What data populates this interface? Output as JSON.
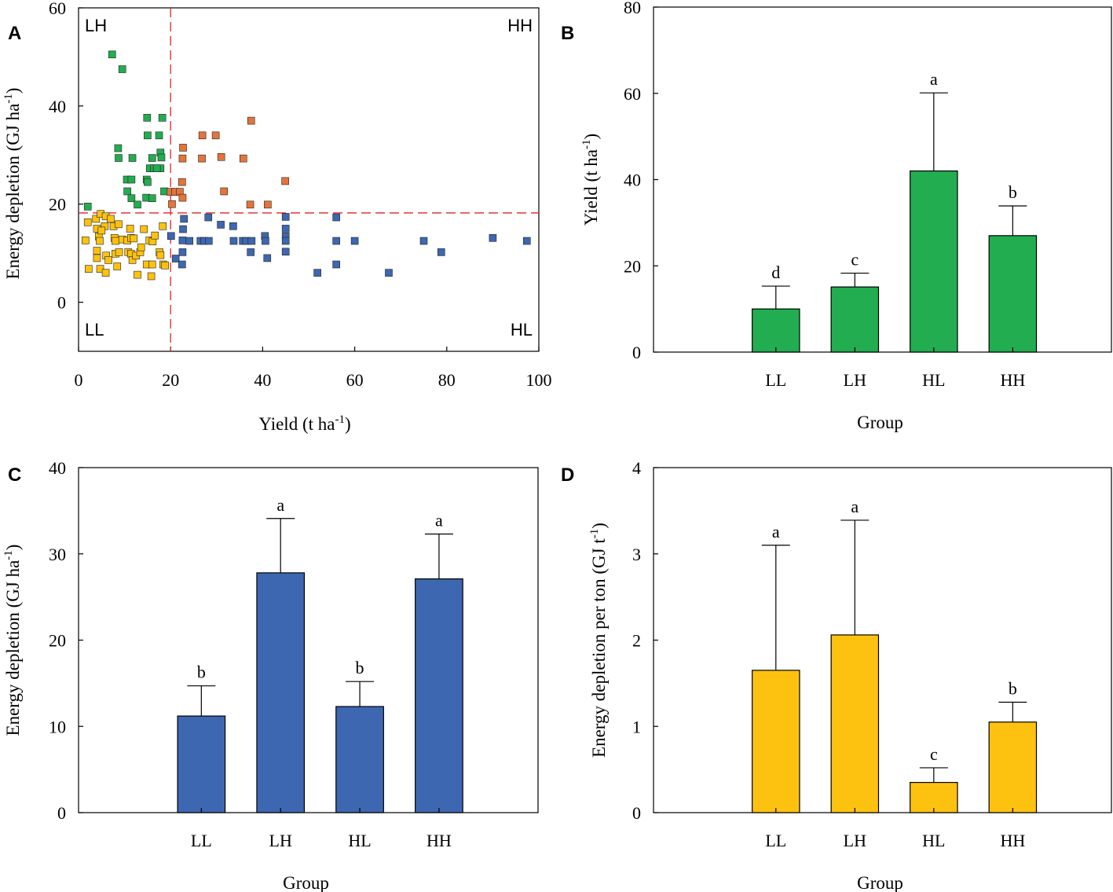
{
  "colors": {
    "green": "#22ad50",
    "orange": "#e5743a",
    "blue": "#3d67b0",
    "yellow": "#fdc20f",
    "threshold": "#e0232a"
  },
  "chart_data": [
    {
      "id": "A",
      "panel_label": "A",
      "type": "scatter",
      "xlabel": "Yield (t ha",
      "xlabel_sup": "-1",
      "xlabel_close": ")",
      "ylabel": "Energy depletion (GJ ha",
      "ylabel_sup": "-1",
      "ylabel_close": ")",
      "xlim": [
        0,
        100
      ],
      "ylim": [
        -10,
        60
      ],
      "xticks": [
        0,
        20,
        40,
        60,
        80,
        100
      ],
      "yticks": [
        0,
        20,
        40,
        60
      ],
      "thresholds": {
        "x": 20,
        "y": 18.2
      },
      "quadrant_labels": {
        "top_left": "LH",
        "top_right": "HH",
        "bottom_left": "LL",
        "bottom_right": "HL"
      },
      "series": [
        {
          "name": "LH",
          "color_key": "green",
          "points": [
            [
              2,
              19.5
            ],
            [
              7.3,
              50.5
            ],
            [
              9.5,
              47.5
            ],
            [
              8.6,
              31.4
            ],
            [
              8.7,
              29.4
            ],
            [
              14.9,
              37.6
            ],
            [
              18.2,
              37.6
            ],
            [
              15,
              34
            ],
            [
              17.5,
              34
            ],
            [
              17.8,
              30.5
            ],
            [
              18,
              29.5
            ],
            [
              16,
              29.4
            ],
            [
              11.7,
              29.4
            ],
            [
              17.8,
              27.3
            ],
            [
              15.5,
              27.3
            ],
            [
              16.4,
              27.3
            ],
            [
              17,
              27.3
            ],
            [
              10.5,
              25
            ],
            [
              11.5,
              25
            ],
            [
              14.8,
              25
            ],
            [
              15,
              24.5
            ],
            [
              10.6,
              22.6
            ],
            [
              18.6,
              22.6
            ],
            [
              11.5,
              21.2
            ],
            [
              14.7,
              21.3
            ],
            [
              16,
              21.2
            ],
            [
              12.8,
              19.9
            ]
          ]
        },
        {
          "name": "HH",
          "color_key": "orange",
          "points": [
            [
              20,
              22.5
            ],
            [
              21,
              22.5
            ],
            [
              22,
              22.5
            ],
            [
              22.6,
              21.3
            ],
            [
              22.7,
              31.5
            ],
            [
              22.6,
              29.3
            ],
            [
              22.5,
              24.5
            ],
            [
              20.3,
              20
            ],
            [
              26.9,
              34
            ],
            [
              29.8,
              34
            ],
            [
              26.8,
              29.3
            ],
            [
              31,
              29.6
            ],
            [
              35.8,
              29.3
            ],
            [
              37.5,
              37
            ],
            [
              37.3,
              19.9
            ],
            [
              31.6,
              22.6
            ],
            [
              41.1,
              19.9
            ],
            [
              44.9,
              24.7
            ]
          ]
        },
        {
          "name": "HL",
          "color_key": "blue",
          "points": [
            [
              20.1,
              13.5
            ],
            [
              21.1,
              8.9
            ],
            [
              22.6,
              10.2
            ],
            [
              22.6,
              12.6
            ],
            [
              22.7,
              14.9
            ],
            [
              22.5,
              7.7
            ],
            [
              22.9,
              17
            ],
            [
              24.1,
              12.5
            ],
            [
              26.5,
              12.5
            ],
            [
              27.3,
              12.5
            ],
            [
              28.3,
              12.5
            ],
            [
              28.2,
              17.3
            ],
            [
              30.9,
              15.8
            ],
            [
              33.7,
              12.5
            ],
            [
              33.6,
              15.5
            ],
            [
              35.7,
              12.5
            ],
            [
              36.4,
              12.5
            ],
            [
              37.6,
              12.5
            ],
            [
              37.4,
              10.2
            ],
            [
              40.5,
              13.5
            ],
            [
              41,
              9
            ],
            [
              40.6,
              12.5
            ],
            [
              45,
              17.4
            ],
            [
              45,
              15
            ],
            [
              45,
              13.4
            ],
            [
              45,
              12.5
            ],
            [
              45,
              10.3
            ],
            [
              51.9,
              6
            ],
            [
              56,
              17.3
            ],
            [
              56,
              12.5
            ],
            [
              56,
              7.7
            ],
            [
              60,
              12.5
            ],
            [
              67.4,
              6
            ],
            [
              75,
              12.5
            ],
            [
              78.8,
              10.2
            ],
            [
              90,
              13.1
            ],
            [
              97.4,
              12.5
            ]
          ]
        },
        {
          "name": "LL",
          "color_key": "yellow",
          "points": [
            [
              1.5,
              12.6
            ],
            [
              2,
              16.3
            ],
            [
              2.2,
              6.8
            ],
            [
              3.8,
              17
            ],
            [
              4,
              15
            ],
            [
              4,
              10.5
            ],
            [
              4,
              9
            ],
            [
              4.4,
              13.4
            ],
            [
              4.6,
              12.5
            ],
            [
              4.7,
              6.8
            ],
            [
              4.8,
              18
            ],
            [
              5.7,
              15.5
            ],
            [
              5,
              14.6
            ],
            [
              5.9,
              17.5
            ],
            [
              6,
              9.5
            ],
            [
              5.9,
              6
            ],
            [
              6.5,
              8.6
            ],
            [
              7,
              17
            ],
            [
              7.6,
              15.5
            ],
            [
              7.8,
              13.1
            ],
            [
              8,
              12.5
            ],
            [
              8,
              9.9
            ],
            [
              8.4,
              7.3
            ],
            [
              8.7,
              15.9
            ],
            [
              8.8,
              10.2
            ],
            [
              9.5,
              12.8
            ],
            [
              10.6,
              12.6
            ],
            [
              10.8,
              10.2
            ],
            [
              11.4,
              9.9
            ],
            [
              11.4,
              13.1
            ],
            [
              11.2,
              15
            ],
            [
              11.7,
              8.6
            ],
            [
              12,
              13
            ],
            [
              12.5,
              9.5
            ],
            [
              12.8,
              5.6
            ],
            [
              13.4,
              10.2
            ],
            [
              13.6,
              11.2
            ],
            [
              14.2,
              14.9
            ],
            [
              14.8,
              7.7
            ],
            [
              15.4,
              12.6
            ],
            [
              15.8,
              5.3
            ],
            [
              16,
              7.7
            ],
            [
              16.1,
              12.4
            ],
            [
              16.6,
              13.6
            ],
            [
              17.6,
              10.2
            ],
            [
              17.8,
              9.6
            ],
            [
              18.3,
              15.5
            ],
            [
              18.4,
              7.7
            ],
            [
              18.8,
              7.5
            ]
          ]
        }
      ]
    },
    {
      "id": "B",
      "panel_label": "B",
      "type": "bar",
      "color_key": "green",
      "xlabel": "Group",
      "ylabel": "Yield (t ha",
      "ylabel_sup": "-1",
      "ylabel_close": ")",
      "categories": [
        "LL",
        "LH",
        "HL",
        "HH"
      ],
      "values": [
        10,
        15.1,
        42,
        27
      ],
      "errors": [
        5.3,
        3.2,
        18.1,
        6.9
      ],
      "sig_letters": [
        "d",
        "c",
        "a",
        "b"
      ],
      "ylim": [
        0,
        80
      ],
      "yticks": [
        0,
        20,
        40,
        60,
        80
      ]
    },
    {
      "id": "C",
      "panel_label": "C",
      "type": "bar",
      "color_key": "blue",
      "xlabel": "Group",
      "ylabel": "Energy depletion (GJ ha",
      "ylabel_sup": "-1",
      "ylabel_close": ")",
      "categories": [
        "LL",
        "LH",
        "HL",
        "HH"
      ],
      "values": [
        11.2,
        27.8,
        12.3,
        27.1
      ],
      "errors": [
        3.5,
        6.3,
        2.9,
        5.2
      ],
      "sig_letters": [
        "b",
        "a",
        "b",
        "a"
      ],
      "ylim": [
        0,
        40
      ],
      "yticks": [
        0,
        10,
        20,
        30,
        40
      ]
    },
    {
      "id": "D",
      "panel_label": "D",
      "type": "bar",
      "color_key": "yellow",
      "xlabel": "Group",
      "ylabel": "Energy depletion per ton (GJ t",
      "ylabel_sup": "-1",
      "ylabel_close": ")",
      "categories": [
        "LL",
        "LH",
        "HL",
        "HH"
      ],
      "values": [
        1.65,
        2.06,
        0.35,
        1.05
      ],
      "errors": [
        1.45,
        1.33,
        0.17,
        0.23
      ],
      "sig_letters": [
        "a",
        "a",
        "c",
        "b"
      ],
      "ylim": [
        0,
        4
      ],
      "yticks": [
        0,
        1,
        2,
        3,
        4
      ]
    }
  ]
}
